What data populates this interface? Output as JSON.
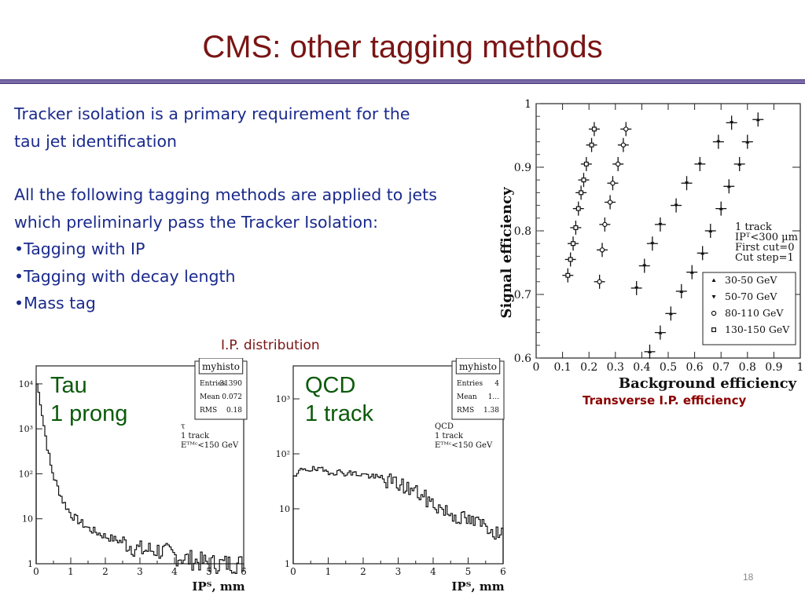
{
  "slide": {
    "title": "CMS:  other tagging methods",
    "page_number": "18"
  },
  "text": {
    "para1": "Tracker isolation is a primary requirement for the tau jet identification",
    "para2": "All the following tagging  methods are applied to jets which preliminarly pass the Tracker Isolation:",
    "bullets": [
      "•Tagging with IP",
      "•Tagging with decay length",
      "•Mass tag"
    ]
  },
  "labels": {
    "ip_distribution": "I.P. distribution",
    "roc_caption": "Transverse I.P. efficiency"
  },
  "colors": {
    "title": "#7a1414",
    "body_text": "#1a2a8c",
    "rule": "#7a6aa8",
    "plot_label": "#0a5a0a"
  },
  "chart_data": [
    {
      "type": "scatter",
      "xlabel": "Background efficiency",
      "ylabel": "Signal efficiency",
      "xlim": [
        0,
        1
      ],
      "ylim": [
        0.6,
        1
      ],
      "x_ticks": [
        "0",
        "0.1",
        "0.2",
        "0.3",
        "0.4",
        "0.5",
        "0.6",
        "0.7",
        "0.8",
        "0.9",
        "1"
      ],
      "y_ticks": [
        "0.6",
        "0.7",
        "0.8",
        "0.9",
        "1"
      ],
      "annotation": [
        "1 track",
        "IPᵀ<300 µm",
        "First cut=0",
        "Cut step=1"
      ],
      "legend_position": "bottom-right",
      "series": [
        {
          "name": "30-50 GeV",
          "marker": "triangle-up",
          "x": [
            0.84,
            0.8,
            0.77,
            0.73,
            0.7,
            0.66,
            0.63,
            0.59,
            0.55,
            0.51,
            0.47,
            0.43
          ],
          "y": [
            0.975,
            0.94,
            0.905,
            0.87,
            0.835,
            0.8,
            0.765,
            0.735,
            0.705,
            0.67,
            0.64,
            0.61
          ]
        },
        {
          "name": "50-70 GeV",
          "marker": "triangle-down",
          "x": [
            0.74,
            0.69,
            0.62,
            0.57,
            0.53,
            0.47,
            0.44,
            0.41,
            0.38
          ],
          "y": [
            0.97,
            0.94,
            0.905,
            0.875,
            0.84,
            0.81,
            0.78,
            0.745,
            0.71
          ]
        },
        {
          "name": "80-110 GeV",
          "marker": "circle",
          "x": [
            0.34,
            0.33,
            0.31,
            0.29,
            0.28,
            0.26,
            0.25,
            0.24
          ],
          "y": [
            0.96,
            0.935,
            0.905,
            0.875,
            0.845,
            0.81,
            0.77,
            0.72
          ]
        },
        {
          "name": "130-150 GeV",
          "marker": "square",
          "x": [
            0.22,
            0.21,
            0.19,
            0.18,
            0.17,
            0.16,
            0.15,
            0.14,
            0.13,
            0.12
          ],
          "y": [
            0.96,
            0.935,
            0.905,
            0.88,
            0.86,
            0.835,
            0.805,
            0.78,
            0.755,
            0.73
          ]
        }
      ]
    },
    {
      "type": "area",
      "label": [
        "Tau",
        "1 prong"
      ],
      "stats_title": "myhisto",
      "stats": [
        [
          "Entries",
          "31390"
        ],
        [
          "Mean",
          "0.072"
        ],
        [
          "RMS",
          "0.18"
        ]
      ],
      "annotation": [
        "τ",
        "1 track",
        "Eᵀᴹᶜ<150 GeV"
      ],
      "xlabel": "IPᵀ, mm",
      "x_ticks": [
        "0",
        "1",
        "2",
        "3",
        "4",
        "5",
        "6"
      ],
      "y_ticks": [
        "1",
        "10",
        "10²",
        "10³",
        "10⁴"
      ],
      "log_y": true,
      "x": [
        0,
        0.1,
        0.2,
        0.3,
        0.4,
        0.5,
        0.75,
        1.0,
        1.5,
        2.0,
        2.5,
        3.0,
        3.5,
        4.0,
        4.5,
        5.0,
        5.5,
        6.0
      ],
      "values": [
        10000,
        4000,
        1200,
        400,
        150,
        80,
        25,
        12,
        6,
        4,
        3,
        2,
        2,
        1.5,
        1.2,
        1,
        1,
        1
      ]
    },
    {
      "type": "area",
      "label": [
        "QCD",
        "1 track"
      ],
      "stats_title": "myhisto",
      "stats": [
        [
          "Entries",
          "4"
        ],
        [
          "Mean",
          "1..."
        ],
        [
          "RMS",
          "1.38"
        ]
      ],
      "annotation": [
        "QCD",
        "1 track",
        "Eᵀᴹᶜ<150 GeV"
      ],
      "xlabel": "IPᵀ, mm",
      "x_ticks": [
        "0",
        "1",
        "2",
        "3",
        "4",
        "5",
        "6"
      ],
      "y_ticks": [
        "1",
        "10",
        "10²",
        "10³"
      ],
      "log_y": true,
      "x": [
        0,
        0.25,
        0.5,
        1.0,
        1.5,
        2.0,
        2.5,
        3.0,
        3.5,
        4.0,
        4.5,
        5.0,
        5.5,
        6.0
      ],
      "values": [
        35,
        55,
        52,
        48,
        45,
        42,
        35,
        28,
        20,
        12,
        8,
        6,
        5,
        3
      ]
    }
  ]
}
